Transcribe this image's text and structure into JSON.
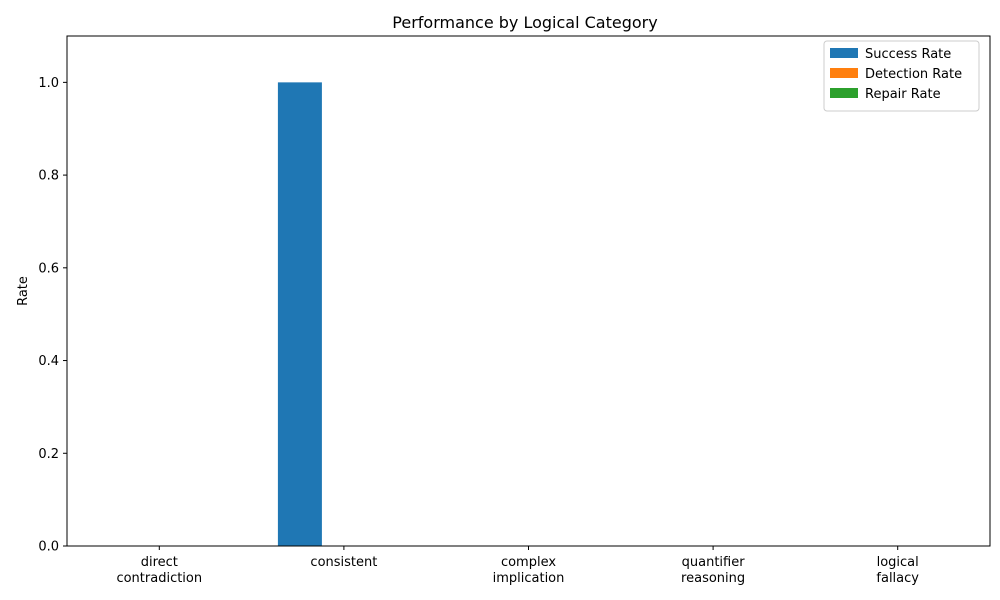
{
  "chart_data": {
    "type": "bar",
    "title": "Performance by Logical Category",
    "xlabel": "",
    "ylabel": "Rate",
    "categories": [
      [
        "direct",
        "contradiction"
      ],
      [
        "consistent"
      ],
      [
        "complex",
        "implication"
      ],
      [
        "quantifier",
        "reasoning"
      ],
      [
        "logical",
        "fallacy"
      ]
    ],
    "series": [
      {
        "name": "Success Rate",
        "color": "#1f77b4",
        "values": [
          0,
          1.0,
          0,
          0,
          0
        ]
      },
      {
        "name": "Detection Rate",
        "color": "#ff7f0e",
        "values": [
          0,
          0,
          0,
          0,
          0
        ]
      },
      {
        "name": "Repair Rate",
        "color": "#2ca02c",
        "values": [
          0,
          0,
          0,
          0,
          0
        ]
      }
    ],
    "ylim": [
      0,
      1.1
    ],
    "yticks": [
      "0.0",
      "0.2",
      "0.4",
      "0.6",
      "0.8",
      "1.0"
    ],
    "ytick_values": [
      0,
      0.2,
      0.4,
      0.6,
      0.8,
      1.0
    ],
    "grid": false,
    "legend_position": "top-right"
  }
}
